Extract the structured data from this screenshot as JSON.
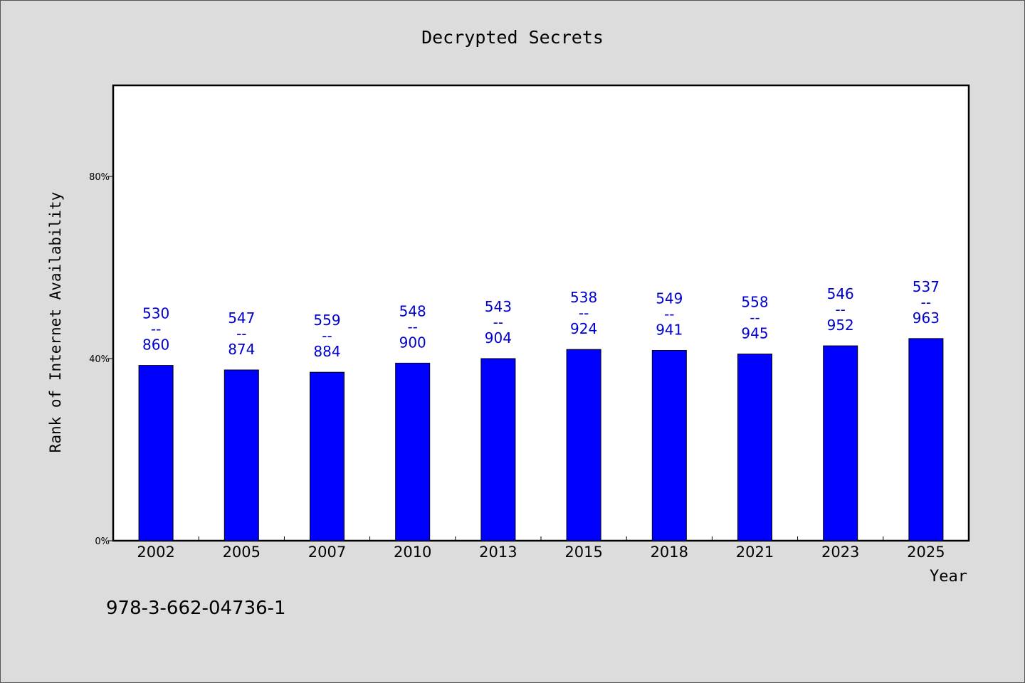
{
  "chart_data": {
    "type": "bar",
    "title": "Decrypted Secrets",
    "xlabel": "Year",
    "ylabel": "Rank of Internet Availability",
    "categories": [
      "2002",
      "2005",
      "2007",
      "2010",
      "2013",
      "2015",
      "2018",
      "2021",
      "2023",
      "2025"
    ],
    "values": [
      38.5,
      37.5,
      37.0,
      39.0,
      40.0,
      42.0,
      41.8,
      41.0,
      42.8,
      44.4
    ],
    "value_unit": "%",
    "labels": [
      [
        "530",
        "--",
        "860"
      ],
      [
        "547",
        "--",
        "874"
      ],
      [
        "559",
        "--",
        "884"
      ],
      [
        "548",
        "--",
        "900"
      ],
      [
        "543",
        "--",
        "904"
      ],
      [
        "538",
        "--",
        "924"
      ],
      [
        "549",
        "--",
        "941"
      ],
      [
        "558",
        "--",
        "945"
      ],
      [
        "546",
        "--",
        "952"
      ],
      [
        "537",
        "--",
        "963"
      ]
    ],
    "ylim": [
      0,
      100
    ],
    "yticks": [
      0,
      40,
      80
    ],
    "ytick_labels": [
      "0%",
      "40%",
      "80%"
    ],
    "grid": false,
    "colors": {
      "bar": "#0000ff",
      "label": "#0000cc",
      "background": "#dcdcdc",
      "plot_background": "#ffffff"
    }
  },
  "footer": {
    "isbn": "978-3-662-04736-1"
  }
}
